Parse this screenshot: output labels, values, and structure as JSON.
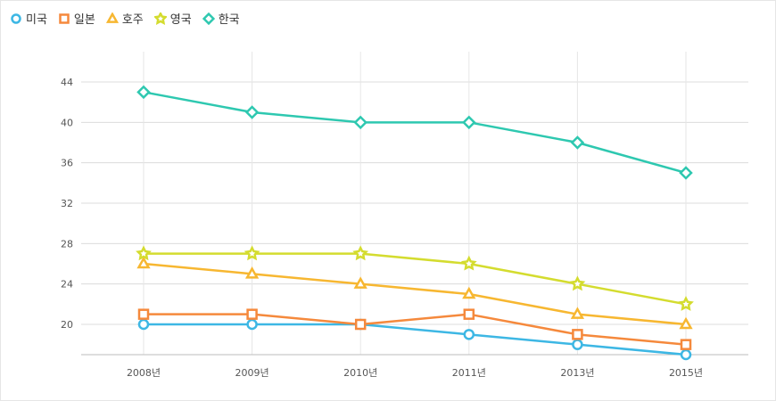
{
  "chart_data": {
    "type": "line",
    "categories": [
      "2008년",
      "2009년",
      "2010년",
      "2011년",
      "2013년",
      "2015년"
    ],
    "yticks": [
      20,
      24,
      28,
      32,
      36,
      40,
      44
    ],
    "ylim": [
      17,
      47
    ],
    "grid": true,
    "legend_position": "top-left",
    "series": [
      {
        "name": "미국",
        "marker": "circle",
        "color": "#3db7e4",
        "values": [
          20,
          20,
          20,
          19,
          18,
          17
        ]
      },
      {
        "name": "일본",
        "marker": "square",
        "color": "#f5893c",
        "values": [
          21,
          21,
          20,
          21,
          19,
          18
        ]
      },
      {
        "name": "호주",
        "marker": "triangle",
        "color": "#f7b731",
        "values": [
          26,
          25,
          24,
          23,
          21,
          20
        ]
      },
      {
        "name": "영국",
        "marker": "star",
        "color": "#d4dc2f",
        "values": [
          27,
          27,
          27,
          26,
          24,
          22
        ]
      },
      {
        "name": "한국",
        "marker": "diamond",
        "color": "#2ec8b0",
        "values": [
          43,
          41,
          40,
          40,
          38,
          35
        ]
      }
    ]
  }
}
